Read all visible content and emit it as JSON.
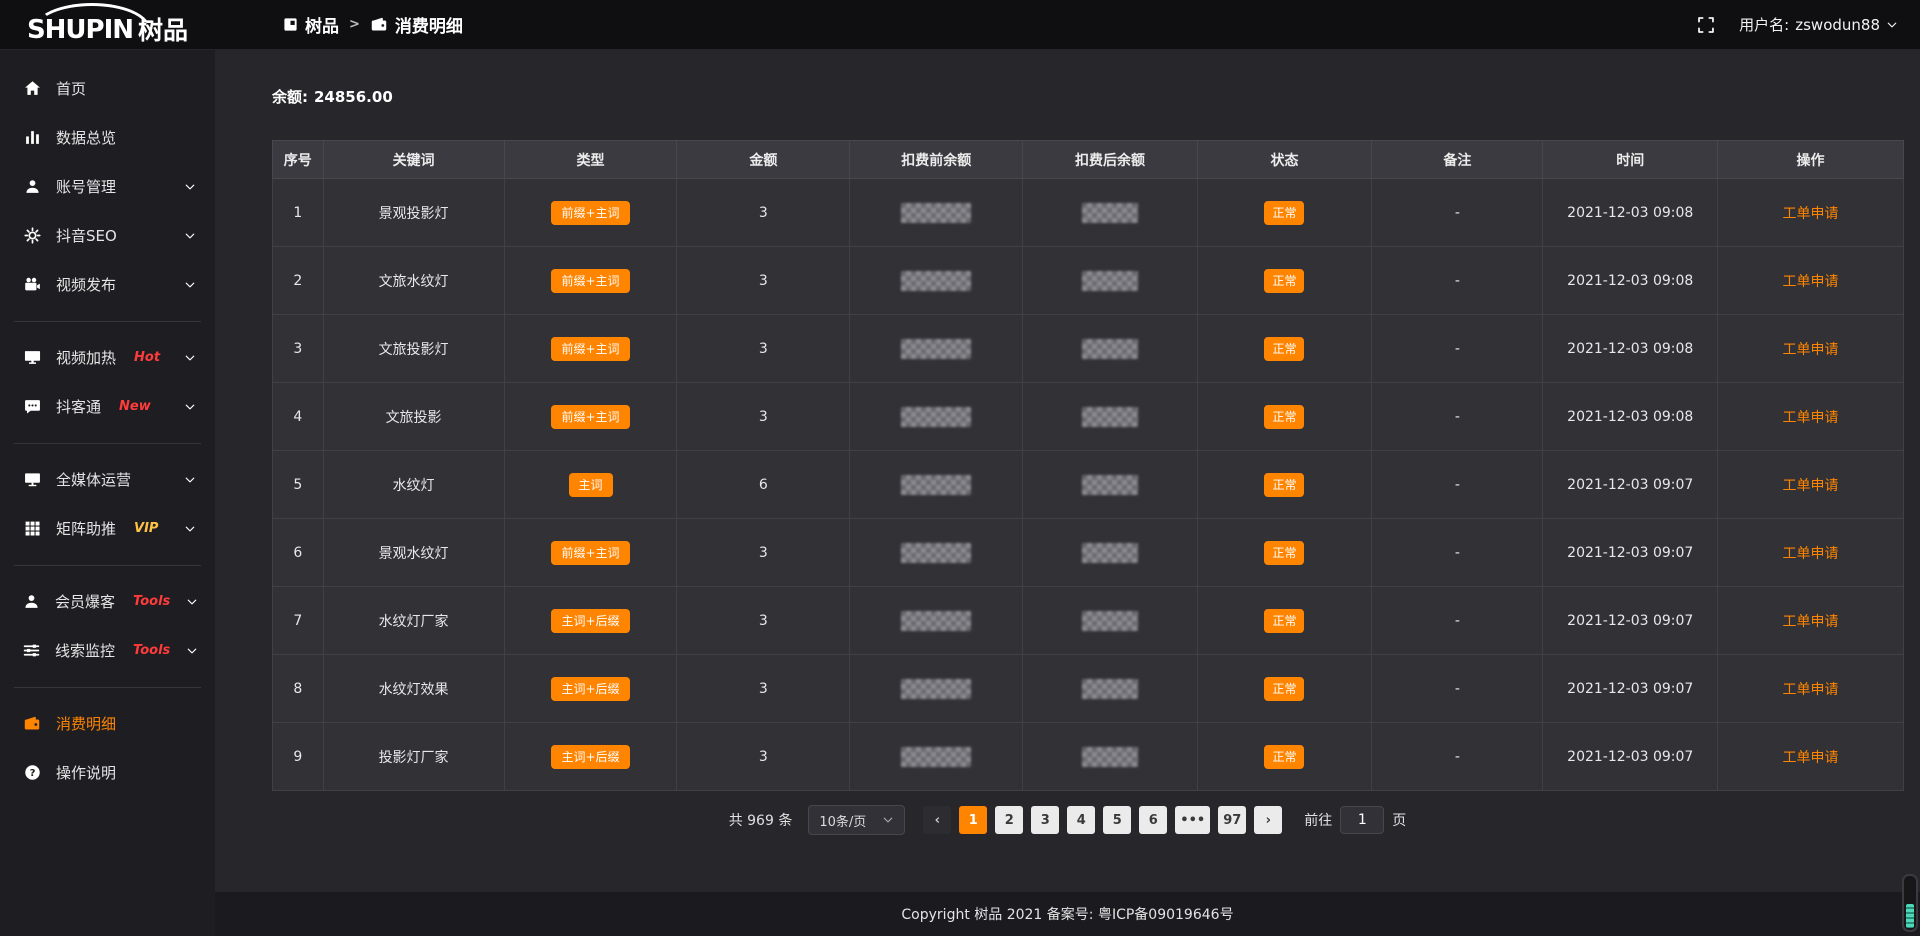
{
  "colors": {
    "accent": "#ff8400",
    "tag_red": "#ff3b3b",
    "tag_vip": "#ffc246"
  },
  "topbar": {
    "logo_en": "SHUPIN",
    "logo_cn": "树品",
    "breadcrumb": [
      {
        "label": "树品",
        "icon": "app-grid-icon"
      },
      {
        "label": "消费明细",
        "icon": "wallet-icon"
      }
    ],
    "breadcrumb_separator": ">",
    "username_label": "用户名:",
    "username": "zswodun88"
  },
  "sidebar": {
    "items": [
      {
        "label": "首页",
        "icon": "home-icon"
      },
      {
        "label": "数据总览",
        "icon": "bar-chart-icon"
      },
      {
        "label": "账号管理",
        "icon": "user-icon",
        "expandable": true
      },
      {
        "label": "抖音SEO",
        "icon": "gear-icon",
        "expandable": true
      },
      {
        "label": "视频发布",
        "icon": "video-camera-icon",
        "expandable": true
      },
      {
        "divider": true
      },
      {
        "label": "视频加热",
        "icon": "monitor-icon",
        "tag": "Hot",
        "tag_color": "red",
        "expandable": true
      },
      {
        "label": "抖客通",
        "icon": "chat-icon",
        "tag": "New",
        "tag_color": "red",
        "expandable": true
      },
      {
        "divider": true
      },
      {
        "label": "全媒体运营",
        "icon": "display-icon",
        "expandable": true
      },
      {
        "label": "矩阵助推",
        "icon": "grid-icon",
        "tag": "VIP",
        "tag_color": "yellow",
        "expandable": true
      },
      {
        "divider": true
      },
      {
        "label": "会员爆客",
        "icon": "user-icon",
        "tag": "Tools",
        "tag_color": "red",
        "expandable": true
      },
      {
        "label": "线索监控",
        "icon": "sliders-icon",
        "tag": "Tools",
        "tag_color": "red",
        "expandable": true
      },
      {
        "divider": true
      },
      {
        "label": "消费明细",
        "icon": "wallet-icon",
        "active": true
      },
      {
        "label": "操作说明",
        "icon": "question-icon"
      }
    ]
  },
  "main": {
    "balance_label": "余额:",
    "balance_value": "24856.00",
    "table": {
      "columns": [
        "序号",
        "关键词",
        "类型",
        "金额",
        "扣费前余额",
        "扣费后余额",
        "状态",
        "备注",
        "时间",
        "操作"
      ],
      "rows": [
        {
          "index": "1",
          "keyword": "景观投影灯",
          "type": "前缀+主词",
          "amount": "3",
          "balance_before_redacted": true,
          "balance_after_redacted": true,
          "status": "正常",
          "remark": "-",
          "time": "2021-12-03 09:08",
          "action": "工单申请"
        },
        {
          "index": "2",
          "keyword": "文旅水纹灯",
          "type": "前缀+主词",
          "amount": "3",
          "balance_before_redacted": true,
          "balance_after_redacted": true,
          "status": "正常",
          "remark": "-",
          "time": "2021-12-03 09:08",
          "action": "工单申请"
        },
        {
          "index": "3",
          "keyword": "文旅投影灯",
          "type": "前缀+主词",
          "amount": "3",
          "balance_before_redacted": true,
          "balance_after_redacted": true,
          "status": "正常",
          "remark": "-",
          "time": "2021-12-03 09:08",
          "action": "工单申请"
        },
        {
          "index": "4",
          "keyword": "文旅投影",
          "type": "前缀+主词",
          "amount": "3",
          "balance_before_redacted": true,
          "balance_after_redacted": true,
          "status": "正常",
          "remark": "-",
          "time": "2021-12-03 09:08",
          "action": "工单申请"
        },
        {
          "index": "5",
          "keyword": "水纹灯",
          "type": "主词",
          "amount": "6",
          "balance_before_redacted": true,
          "balance_after_redacted": true,
          "status": "正常",
          "remark": "-",
          "time": "2021-12-03 09:07",
          "action": "工单申请"
        },
        {
          "index": "6",
          "keyword": "景观水纹灯",
          "type": "前缀+主词",
          "amount": "3",
          "balance_before_redacted": true,
          "balance_after_redacted": true,
          "status": "正常",
          "remark": "-",
          "time": "2021-12-03 09:07",
          "action": "工单申请"
        },
        {
          "index": "7",
          "keyword": "水纹灯厂家",
          "type": "主词+后缀",
          "amount": "3",
          "balance_before_redacted": true,
          "balance_after_redacted": true,
          "status": "正常",
          "remark": "-",
          "time": "2021-12-03 09:07",
          "action": "工单申请"
        },
        {
          "index": "8",
          "keyword": "水纹灯效果",
          "type": "主词+后缀",
          "amount": "3",
          "balance_before_redacted": true,
          "balance_after_redacted": true,
          "status": "正常",
          "remark": "-",
          "time": "2021-12-03 09:07",
          "action": "工单申请"
        },
        {
          "index": "9",
          "keyword": "投影灯厂家",
          "type": "主词+后缀",
          "amount": "3",
          "balance_before_redacted": true,
          "balance_after_redacted": true,
          "status": "正常",
          "remark": "-",
          "time": "2021-12-03 09:07",
          "action": "工单申请"
        }
      ]
    },
    "pagination": {
      "total_label": "共 969 条",
      "page_size": "10条/页",
      "prev": "‹",
      "next": "›",
      "pages": [
        "1",
        "2",
        "3",
        "4",
        "5",
        "6",
        "•••",
        "97"
      ],
      "active_page": "1",
      "goto_label": "前往",
      "goto_value": "1",
      "goto_suffix": "页"
    }
  },
  "footer": {
    "copyright": "Copyright 树品 2021 备案号: 粤ICP备09019646号"
  }
}
